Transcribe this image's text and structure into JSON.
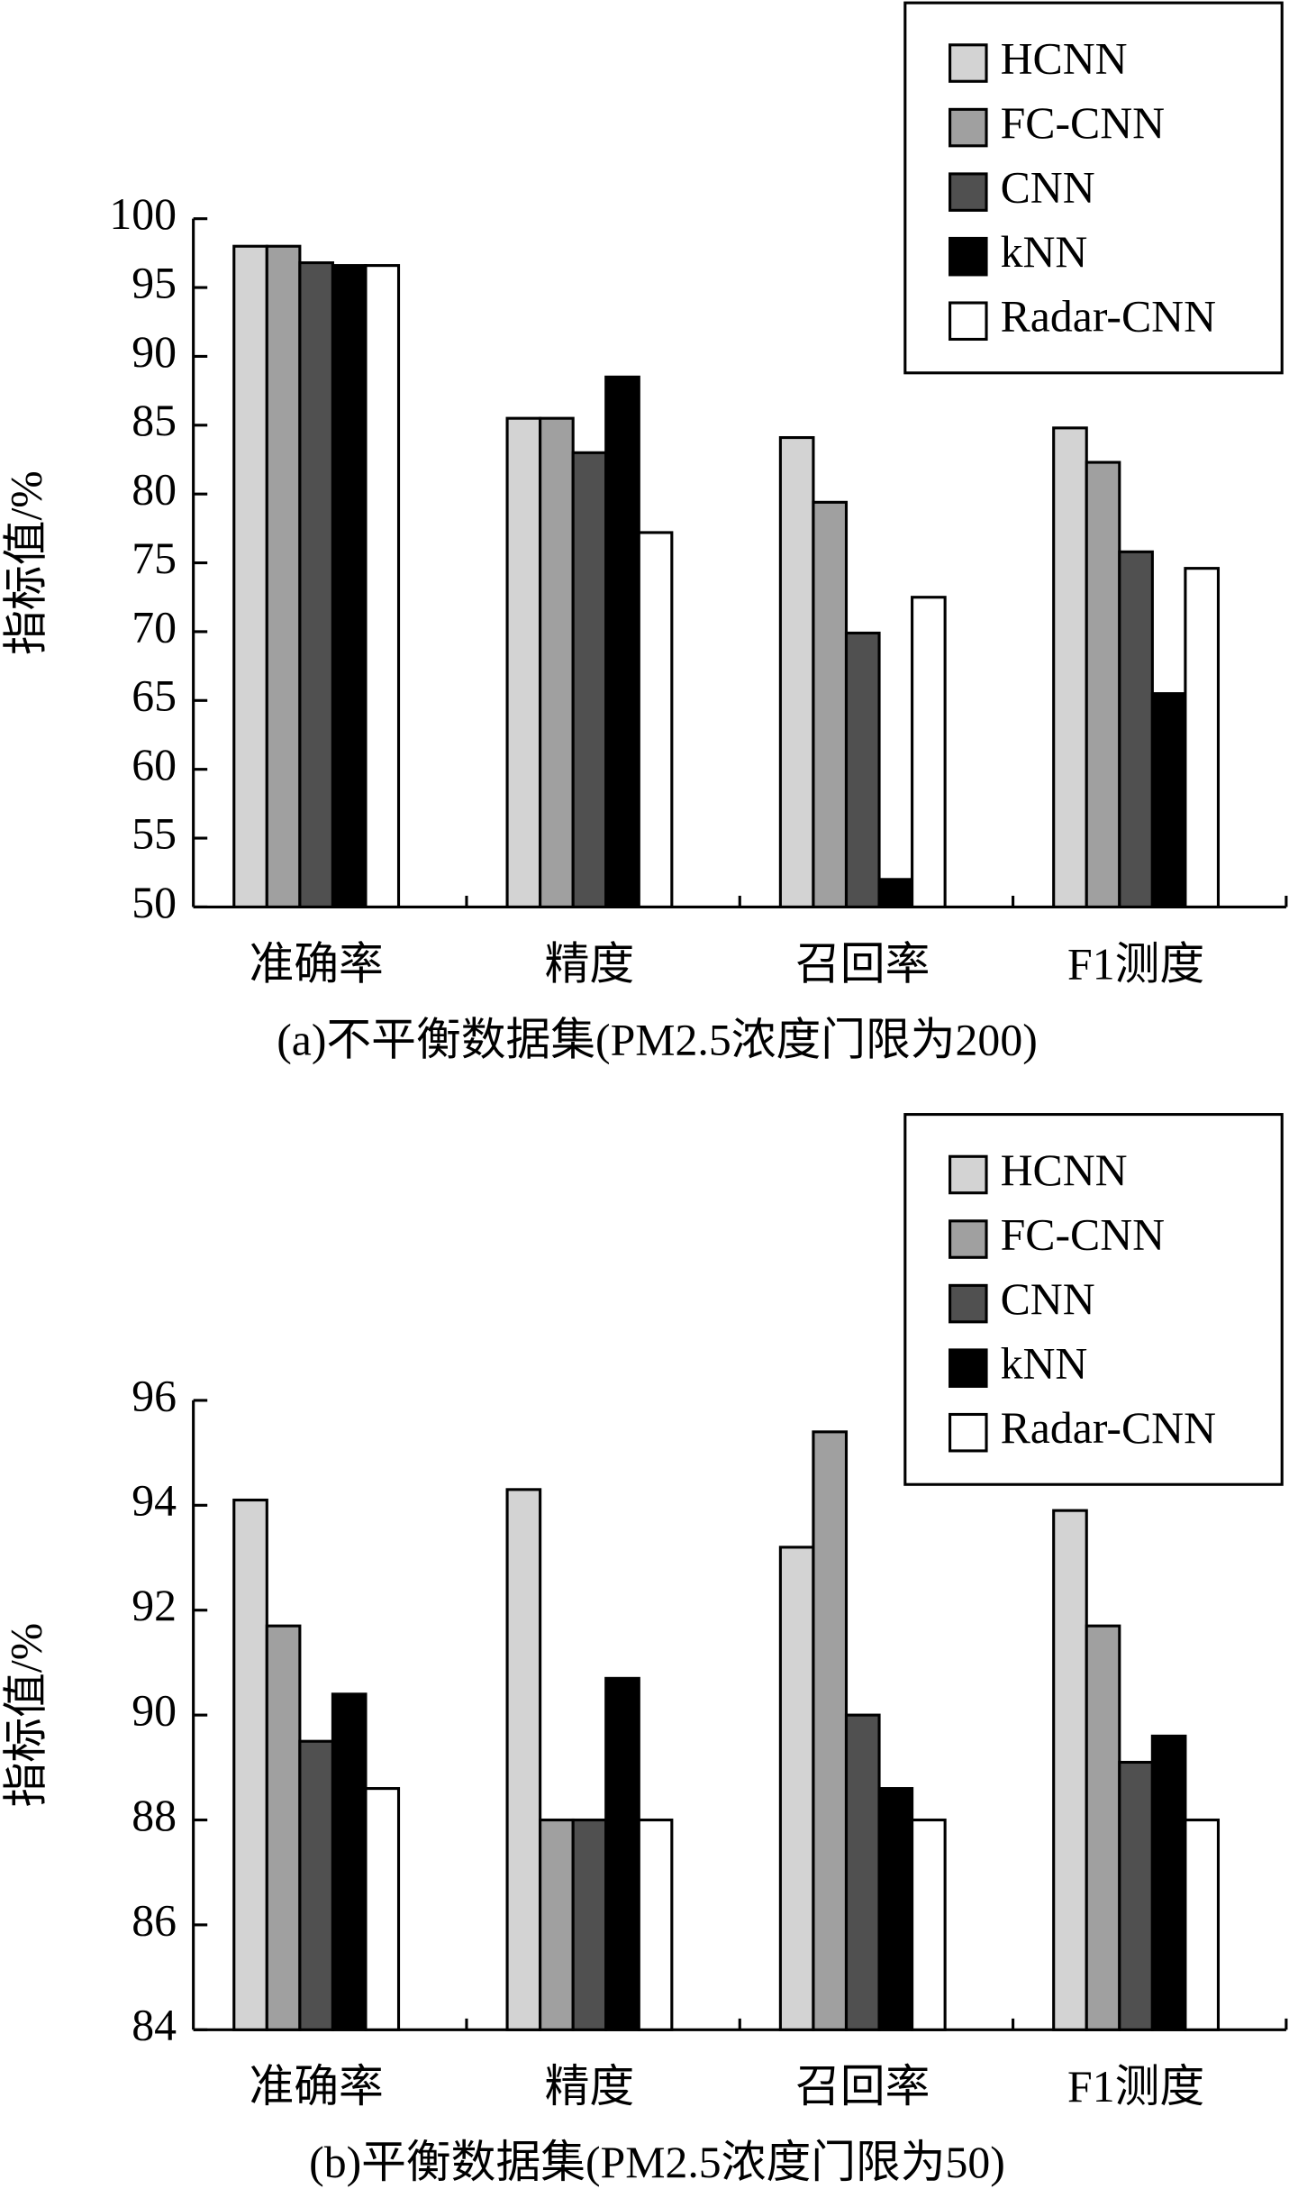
{
  "chart_data": [
    {
      "type": "bar",
      "title": "(a)不平衡数据集(PM2.5浓度门限为200)",
      "ylabel": "指标值/%",
      "categories": [
        "准确率",
        "精度",
        "召回率",
        "F1测度"
      ],
      "series": [
        {
          "name": "HCNN",
          "color": "#d3d3d3",
          "values": [
            98.0,
            85.5,
            84.1,
            84.8
          ]
        },
        {
          "name": "FC-CNN",
          "color": "#a0a0a0",
          "values": [
            98.0,
            85.5,
            79.4,
            82.3
          ]
        },
        {
          "name": "CNN",
          "color": "#505050",
          "values": [
            96.8,
            83.0,
            69.9,
            75.8
          ]
        },
        {
          "name": "kNN",
          "color": "#000000",
          "values": [
            96.6,
            88.5,
            52.0,
            65.5
          ]
        },
        {
          "name": "Radar-CNN",
          "color": "#ffffff",
          "values": [
            96.6,
            77.2,
            72.5,
            74.6
          ]
        }
      ],
      "ylim": [
        50,
        100
      ],
      "yticks": [
        50,
        55,
        60,
        65,
        70,
        75,
        80,
        85,
        90,
        95,
        100
      ],
      "legend": "upper right"
    },
    {
      "type": "bar",
      "title": "(b)平衡数据集(PM2.5浓度门限为50)",
      "ylabel": "指标值/%",
      "categories": [
        "准确率",
        "精度",
        "召回率",
        "F1测度"
      ],
      "series": [
        {
          "name": "HCNN",
          "color": "#d3d3d3",
          "values": [
            94.1,
            94.3,
            93.2,
            93.9
          ]
        },
        {
          "name": "FC-CNN",
          "color": "#a0a0a0",
          "values": [
            91.7,
            88.0,
            95.4,
            91.7
          ]
        },
        {
          "name": "CNN",
          "color": "#505050",
          "values": [
            89.5,
            88.0,
            90.0,
            89.1
          ]
        },
        {
          "name": "kNN",
          "color": "#000000",
          "values": [
            90.4,
            90.7,
            88.6,
            89.6
          ]
        },
        {
          "name": "Radar-CNN",
          "color": "#ffffff",
          "values": [
            88.6,
            88.0,
            88.0,
            88.0
          ]
        }
      ],
      "ylim": [
        84,
        96
      ],
      "yticks": [
        84,
        86,
        88,
        90,
        92,
        94,
        96
      ],
      "legend": "upper right"
    }
  ]
}
